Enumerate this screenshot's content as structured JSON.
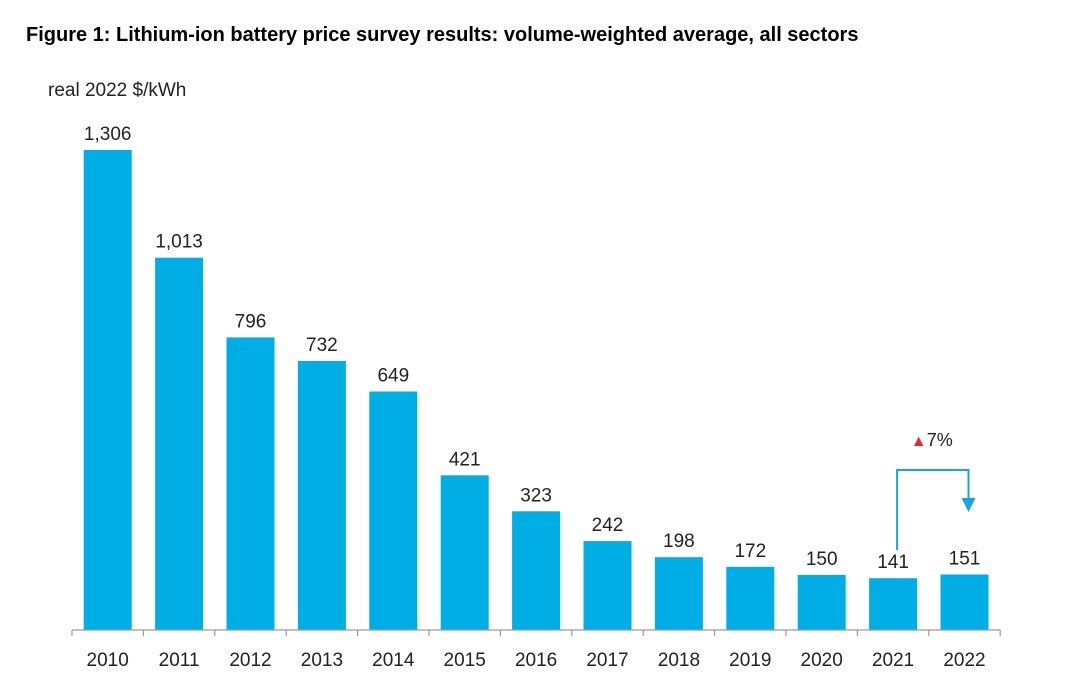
{
  "figure": {
    "title": "Figure 1:  Lithium-ion battery price survey results: volume-weighted average, all sectors",
    "unit_label": "real 2022 $/kWh"
  },
  "chart_data": {
    "type": "bar",
    "categories": [
      "2010",
      "2011",
      "2012",
      "2013",
      "2014",
      "2015",
      "2016",
      "2017",
      "2018",
      "2019",
      "2020",
      "2021",
      "2022"
    ],
    "values": [
      1306,
      1013,
      796,
      732,
      649,
      421,
      323,
      242,
      198,
      172,
      150,
      141,
      151
    ],
    "value_labels": [
      "1,306",
      "1,013",
      "796",
      "732",
      "649",
      "421",
      "323",
      "242",
      "198",
      "172",
      "150",
      "141",
      "151"
    ],
    "ylabel": "real 2022 $/kWh",
    "ylim": [
      0,
      1306
    ],
    "bar_color": "#00aee6",
    "grid": false,
    "annotation": {
      "text": "7%",
      "marker": "▲",
      "marker_color": "#e8262b",
      "from": "2021",
      "to": "2022",
      "arrow_color": "#1aa3dc"
    }
  }
}
